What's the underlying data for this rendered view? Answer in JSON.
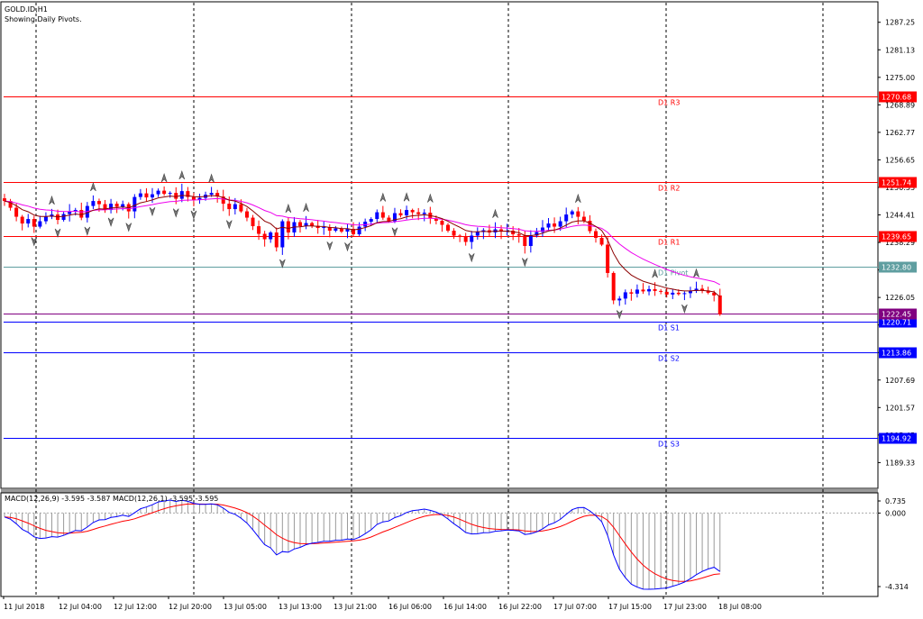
{
  "chart": {
    "symbol": "GOLD.ID,H1",
    "subtitle": "Showing Daily Pivots.",
    "price_min": 1184,
    "price_max": 1291,
    "price_ticks": [
      "1287.25",
      "1281.13",
      "1275.00",
      "1268.89",
      "1262.77",
      "1256.65",
      "1250.53",
      "1244.41",
      "1238.29",
      "1232.17",
      "1226.05",
      "1219.93",
      "1213.81",
      "1207.69",
      "1201.57",
      "1195.45",
      "1189.33"
    ],
    "time_labels": [
      "11 Jul 2018",
      "12 Jul 04:00",
      "12 Jul 12:00",
      "12 Jul 20:00",
      "13 Jul 05:00",
      "13 Jul 13:00",
      "13 Jul 21:00",
      "16 Jul 06:00",
      "16 Jul 14:00",
      "16 Jul 22:00",
      "17 Jul 07:00",
      "17 Jul 15:00",
      "17 Jul 23:00",
      "18 Jul 08:00"
    ],
    "colors": {
      "bull": "#0000ff",
      "bear": "#ff0000",
      "resistance": "#ff0000",
      "support": "#0000ff",
      "pivot": "#5f9ea0",
      "ma_fast": "#8b0000",
      "ma_slow": "#ee00ee",
      "macd": "#0000ff",
      "signal": "#ff0000",
      "current": "#800080"
    }
  },
  "pivots": [
    {
      "name": "D1 R3",
      "value": 1270.68,
      "value_label": "1270.68",
      "kind": "resistance"
    },
    {
      "name": "D1 R2",
      "value": 1251.74,
      "value_label": "1251.74",
      "kind": "resistance"
    },
    {
      "name": "D1 R1",
      "value": 1239.65,
      "value_label": "1239.65",
      "kind": "resistance"
    },
    {
      "name": "D1 Pivot",
      "value": 1232.8,
      "value_label": "1232.80",
      "kind": "pivot"
    },
    {
      "name": "D1 S1",
      "value": 1220.71,
      "value_label": "1220.71",
      "kind": "support"
    },
    {
      "name": "D1 S2",
      "value": 1213.86,
      "value_label": "1213.86",
      "kind": "support"
    },
    {
      "name": "D1 S3",
      "value": 1194.92,
      "value_label": "1194.92",
      "kind": "support"
    }
  ],
  "current_price": {
    "value": 1222.45,
    "label": "1222.45"
  },
  "macd": {
    "label": "MACD(12,26,9) -3.595 -3.587 MACD(12,26,1) -3.595 -3.595",
    "max_label": "0.735",
    "zero_label": "0.000",
    "min_label": "-4.314",
    "vmax": 0.735,
    "vmin": -4.314
  },
  "chart_data": {
    "type": "candlestick",
    "title": "GOLD.ID,H1",
    "timeframe": "H1",
    "close": [
      1247.5,
      1246.0,
      1244.0,
      1242.5,
      1243.5,
      1241.8,
      1243.0,
      1244.0,
      1244.5,
      1243.3,
      1244.6,
      1245.2,
      1245.5,
      1243.8,
      1246.4,
      1247.5,
      1246.8,
      1245.5,
      1246.9,
      1246.2,
      1246.8,
      1245.2,
      1248.4,
      1249.2,
      1248.3,
      1249.0,
      1249.8,
      1249.1,
      1249.3,
      1248.0,
      1249.7,
      1248.4,
      1247.8,
      1248.2,
      1248.9,
      1249.3,
      1248.5,
      1246.9,
      1245.7,
      1246.8,
      1245.2,
      1243.8,
      1241.9,
      1240.2,
      1239.0,
      1240.5,
      1237.2,
      1243.0,
      1240.5,
      1242.8,
      1241.9,
      1242.6,
      1242.0,
      1241.5,
      1241.7,
      1240.9,
      1241.4,
      1240.7,
      1241.3,
      1240.1,
      1241.8,
      1242.9,
      1243.5,
      1245.0,
      1243.8,
      1243.0,
      1244.8,
      1244.3,
      1245.5,
      1245.0,
      1244.6,
      1244.9,
      1243.6,
      1243.1,
      1242.2,
      1240.9,
      1239.8,
      1239.5,
      1238.4,
      1239.8,
      1240.6,
      1241.0,
      1240.5,
      1241.2,
      1240.7,
      1240.9,
      1240.1,
      1239.8,
      1237.5,
      1239.8,
      1240.6,
      1241.6,
      1242.5,
      1241.8,
      1243.0,
      1244.5,
      1245.2,
      1244.0,
      1243.1,
      1240.8,
      1239.3,
      1237.8,
      1231.5,
      1225.4,
      1225.8,
      1227.2,
      1226.9,
      1227.8,
      1227.4,
      1227.9,
      1227.5,
      1227.3,
      1226.7,
      1227.1,
      1226.8,
      1227.0,
      1227.5,
      1228.0,
      1227.6,
      1227.1,
      1226.5,
      1222.3
    ],
    "ma_fast_last": 1227.8,
    "ma_slow_last": 1230.5,
    "macd_last": -3.595,
    "signal_last": -3.587
  }
}
